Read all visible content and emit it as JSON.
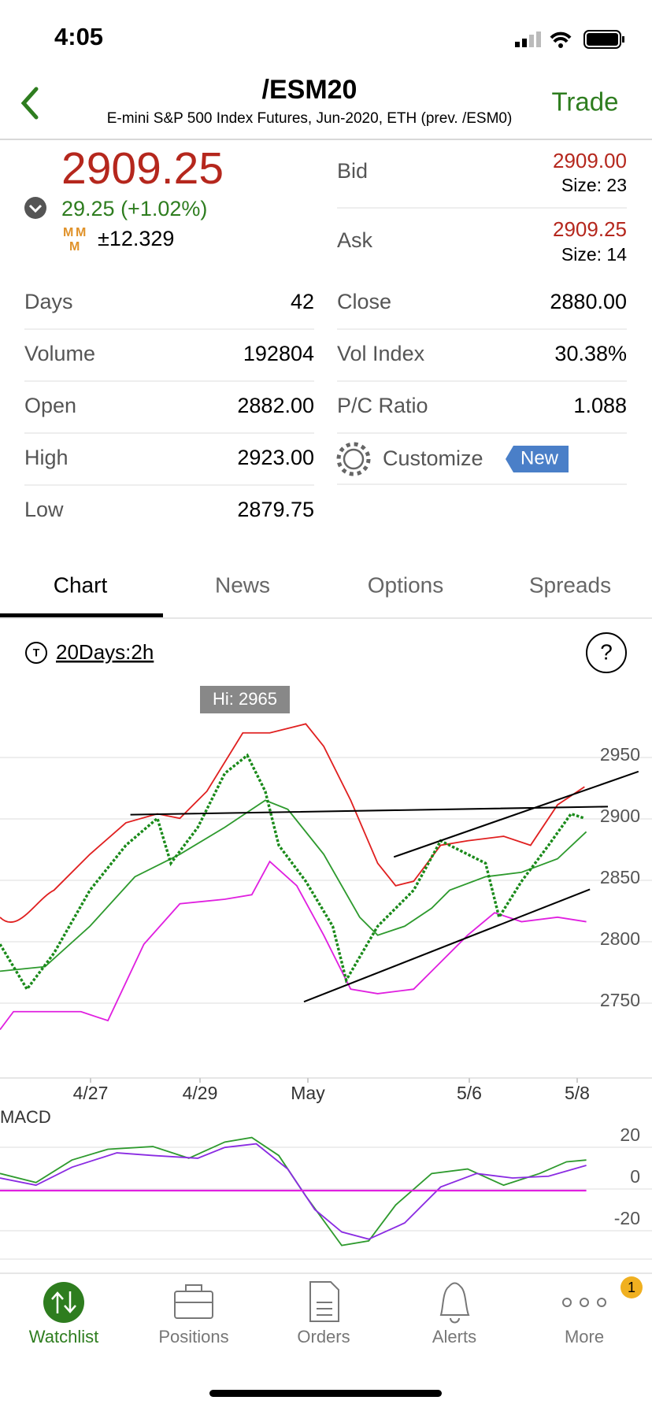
{
  "status": {
    "time": "4:05"
  },
  "header": {
    "title": "/ESM20",
    "subtitle": "E-mini S&P 500 Index Futures, Jun-2020, ETH (prev. /ESM0)",
    "action": "Trade"
  },
  "quote": {
    "last": "2909.25",
    "change": "29.25 (+1.02%)",
    "mm": "±12.329",
    "bid": {
      "label": "Bid",
      "price": "2909.00",
      "size": "Size: 23"
    },
    "ask": {
      "label": "Ask",
      "price": "2909.25",
      "size": "Size: 14"
    }
  },
  "stats": {
    "left": [
      {
        "label": "Days",
        "value": "42"
      },
      {
        "label": "Volume",
        "value": "192804"
      },
      {
        "label": "Open",
        "value": "2882.00"
      },
      {
        "label": "High",
        "value": "2923.00"
      },
      {
        "label": "Low",
        "value": "2879.75"
      }
    ],
    "right": [
      {
        "label": "Close",
        "value": "2880.00"
      },
      {
        "label": "Vol Index",
        "value": "30.38%"
      },
      {
        "label": "P/C Ratio",
        "value": "1.088"
      }
    ],
    "customize": {
      "label": "Customize",
      "badge": "New"
    }
  },
  "tabs": [
    "Chart",
    "News",
    "Options",
    "Spreads"
  ],
  "chart": {
    "period": "20Days:2h",
    "hi_label": "Hi: 2965",
    "yticks": [
      2950,
      2900,
      2850,
      2800,
      2750
    ],
    "xlabels": [
      "4/27",
      "4/29",
      "May",
      "5/6",
      "5/8"
    ],
    "macd": {
      "label": "MACD",
      "yticks": [
        20,
        0,
        -20
      ]
    }
  },
  "tabbar": {
    "items": [
      "Watchlist",
      "Positions",
      "Orders",
      "Alerts",
      "More"
    ],
    "badge": "1"
  }
}
